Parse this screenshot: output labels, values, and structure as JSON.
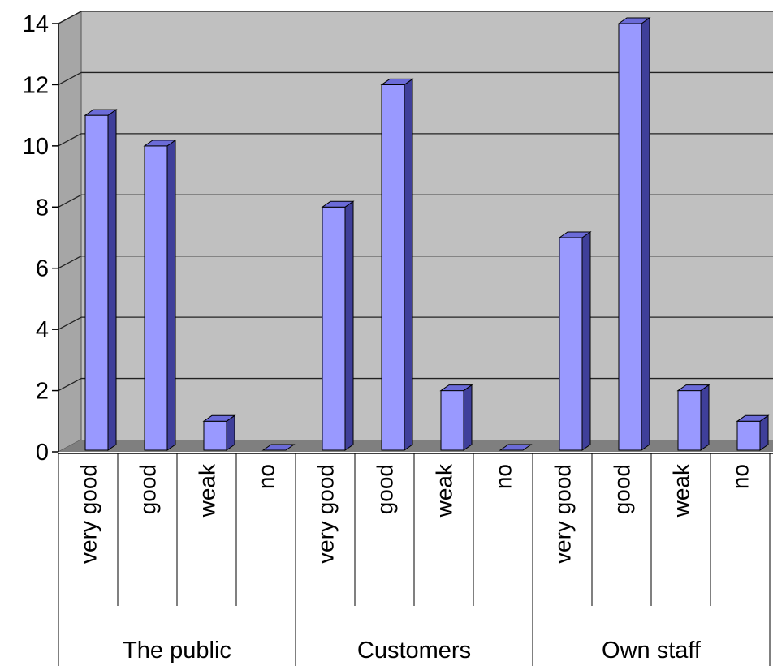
{
  "chart_data": {
    "type": "bar",
    "style": "3d-clustered-column",
    "groups": [
      {
        "name": "The public",
        "categories": [
          "very good",
          "good",
          "weak",
          "no"
        ],
        "values": [
          11,
          10,
          1,
          0
        ]
      },
      {
        "name": "Customers",
        "categories": [
          "very good",
          "good",
          "weak",
          "no"
        ],
        "values": [
          8,
          12,
          2,
          0
        ]
      },
      {
        "name": "Own staff",
        "categories": [
          "very good",
          "good",
          "weak",
          "no"
        ],
        "values": [
          7,
          14,
          2,
          1
        ]
      }
    ],
    "y_ticks": [
      "0",
      "2",
      "4",
      "6",
      "8",
      "10",
      "12",
      "14"
    ],
    "ylim": [
      0,
      14
    ],
    "grid": true,
    "legend": false,
    "colors": {
      "bar_front": "#9999ff",
      "bar_side": "#3f3f9a",
      "bar_top": "#6b6bd8",
      "back_wall": "#c0c0c0",
      "side_wall": "#a6a6a6",
      "floor": "#7f7f7f",
      "gridline": "#222222"
    }
  }
}
